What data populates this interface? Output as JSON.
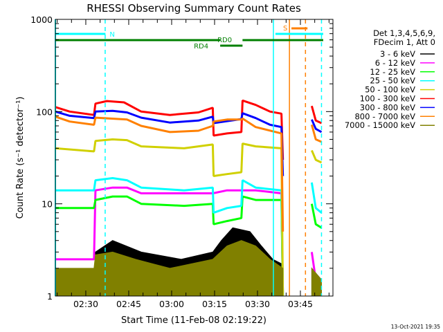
{
  "chart_data": {
    "type": "line",
    "title": "RHESSI Observing Summary Count Rates",
    "xlabel": "Start Time (11-Feb-08 02:19:22)",
    "ylabel": "Count Rate (s⁻¹ detector⁻¹)",
    "yscale": "log",
    "ylim": [
      1,
      1000
    ],
    "xlim_minutes_from_start": [
      0,
      97
    ],
    "start_time_minutes": 139.367,
    "x_tick_labels": [
      "02:30",
      "02:45",
      "03:00",
      "03:15",
      "03:30",
      "03:45"
    ],
    "x_tick_minutes": [
      150,
      165,
      180,
      195,
      210,
      225
    ],
    "y_tick_labels": [
      "1",
      "10",
      "100",
      "1000"
    ],
    "y_tick_values": [
      1,
      10,
      100,
      1000
    ],
    "footer": "13-Oct-2021 19:35",
    "legend": {
      "placement": "right",
      "header": [
        "Det 1,3,4,5,6,9,",
        "FDecim 1, Att 0"
      ]
    },
    "annotations": [
      {
        "label": "N",
        "color": "#00ffff",
        "from": 0,
        "to": 17.5,
        "row": "top"
      },
      {
        "label": "",
        "color": "#00ffff",
        "from": 76.9,
        "to": 93.6,
        "row": "top"
      },
      {
        "label": "S",
        "color": "#ff8000",
        "from": 82.5,
        "to": 88.1,
        "row": "s"
      },
      {
        "label": "RD0",
        "color": "#007f00",
        "from": 0,
        "to": 57.6,
        "row": "rd0"
      },
      {
        "label": "",
        "color": "#007f00",
        "from": 65.4,
        "to": 93.6,
        "row": "rd0"
      },
      {
        "label": "RD4",
        "color": "#007f00",
        "from": 57.6,
        "to": 65.4,
        "row": "rd4"
      }
    ],
    "vlines": [
      {
        "t": 0,
        "color": "#00ffff",
        "dash": false
      },
      {
        "t": 17.4,
        "color": "#00ffff",
        "dash": true
      },
      {
        "t": 76.2,
        "color": "#00ffff",
        "dash": false
      },
      {
        "t": 81.8,
        "color": "#ff8000",
        "dash": false
      },
      {
        "t": 87.4,
        "color": "#ff8000",
        "dash": true
      },
      {
        "t": 93,
        "color": "#00ffff",
        "dash": true
      }
    ],
    "series": [
      {
        "name": "3 - 6 keV",
        "color": "#000000",
        "band": true,
        "segments": [
          [
            [
              0,
              1
            ],
            [
              13.5,
              1
            ],
            [
              14,
              3
            ],
            [
              20,
              4
            ],
            [
              30,
              3
            ],
            [
              44,
              2.5
            ],
            [
              55,
              3
            ],
            [
              58,
              4
            ],
            [
              62,
              5.5
            ],
            [
              68,
              5
            ],
            [
              72,
              3.5
            ],
            [
              76,
              2.5
            ],
            [
              79.5,
              2.2
            ]
          ],
          [
            [
              89.6,
              2
            ],
            [
              93,
              1.5
            ]
          ]
        ],
        "low": [
          [
            [
              0,
              1
            ],
            [
              79.5,
              1
            ]
          ],
          [
            [
              89.6,
              1
            ],
            [
              93,
              1
            ]
          ]
        ]
      },
      {
        "name": "6 - 12 keV",
        "color": "#ff00ff",
        "segments": [
          [
            [
              0,
              2.5
            ],
            [
              13.5,
              2.5
            ],
            [
              14,
              14
            ],
            [
              20,
              15
            ],
            [
              25,
              15
            ],
            [
              30,
              13
            ],
            [
              45,
              13
            ],
            [
              55,
              13
            ],
            [
              60,
              14
            ],
            [
              70,
              14
            ],
            [
              79,
              13
            ],
            [
              79.5,
              1
            ]
          ],
          [
            [
              89.6,
              3
            ],
            [
              91,
              1.5
            ],
            [
              93,
              1.5
            ]
          ]
        ]
      },
      {
        "name": "12 - 25 keV",
        "color": "#00ff00",
        "segments": [
          [
            [
              0,
              9
            ],
            [
              13.5,
              9
            ],
            [
              14,
              11
            ],
            [
              20,
              12
            ],
            [
              25,
              12
            ],
            [
              30,
              10
            ],
            [
              45,
              9.5
            ],
            [
              55,
              10
            ],
            [
              55.3,
              6
            ],
            [
              60,
              6.5
            ],
            [
              65,
              7
            ],
            [
              65.4,
              12
            ],
            [
              70,
              11
            ],
            [
              79,
              11
            ],
            [
              79.5,
              1
            ]
          ],
          [
            [
              89.6,
              10
            ],
            [
              91,
              6
            ],
            [
              93,
              5.5
            ]
          ]
        ]
      },
      {
        "name": "25 - 50 keV",
        "color": "#00ffff",
        "segments": [
          [
            [
              0,
              14
            ],
            [
              13.5,
              14
            ],
            [
              14,
              18
            ],
            [
              20,
              19
            ],
            [
              25,
              18
            ],
            [
              30,
              15
            ],
            [
              45,
              14
            ],
            [
              55,
              15
            ],
            [
              55.3,
              8
            ],
            [
              60,
              9
            ],
            [
              65,
              9.5
            ],
            [
              65.4,
              18
            ],
            [
              70,
              15
            ],
            [
              79,
              14
            ],
            [
              79.5,
              1
            ]
          ],
          [
            [
              89.6,
              17
            ],
            [
              91,
              9
            ],
            [
              93,
              8
            ]
          ]
        ]
      },
      {
        "name": "50 - 100 keV",
        "color": "#d0d000",
        "segments": [
          [
            [
              0,
              40
            ],
            [
              13.5,
              37
            ],
            [
              14,
              48
            ],
            [
              20,
              50
            ],
            [
              25,
              49
            ],
            [
              30,
              42
            ],
            [
              45,
              40
            ],
            [
              55,
              44
            ],
            [
              55.3,
              20
            ],
            [
              60,
              21
            ],
            [
              65,
              22
            ],
            [
              65.4,
              45
            ],
            [
              70,
              42
            ],
            [
              79,
              40
            ],
            [
              79.5,
              1
            ]
          ],
          [
            [
              89.6,
              38
            ],
            [
              91,
              30
            ],
            [
              93,
              28
            ]
          ]
        ]
      },
      {
        "name": "100 - 300 keV",
        "color": "#ff0000",
        "segments": [
          [
            [
              0,
              112
            ],
            [
              5,
              100
            ],
            [
              13.5,
              92
            ],
            [
              14,
              122
            ],
            [
              18,
              130
            ],
            [
              24,
              126
            ],
            [
              30,
              100
            ],
            [
              40,
              92
            ],
            [
              50,
              98
            ],
            [
              55,
              110
            ],
            [
              55.3,
              55
            ],
            [
              60,
              58
            ],
            [
              65,
              60
            ],
            [
              65.4,
              132
            ],
            [
              70,
              118
            ],
            [
              75,
              100
            ],
            [
              79,
              95
            ],
            [
              79.5,
              30
            ]
          ],
          [
            [
              89.6,
              115
            ],
            [
              91,
              80
            ],
            [
              93,
              75
            ]
          ]
        ]
      },
      {
        "name": "300 - 800 keV",
        "color": "#0000ff",
        "segments": [
          [
            [
              0,
              100
            ],
            [
              5,
              90
            ],
            [
              13.5,
              85
            ],
            [
              14,
              100
            ],
            [
              20,
              102
            ],
            [
              25,
              98
            ],
            [
              30,
              86
            ],
            [
              40,
              76
            ],
            [
              50,
              80
            ],
            [
              55,
              88
            ],
            [
              55.3,
              75
            ],
            [
              65,
              83
            ],
            [
              65.4,
              96
            ],
            [
              70,
              85
            ],
            [
              75,
              72
            ],
            [
              79,
              68
            ],
            [
              79.5,
              20
            ]
          ],
          [
            [
              89.6,
              82
            ],
            [
              91,
              65
            ],
            [
              93,
              60
            ]
          ]
        ]
      },
      {
        "name": "800 - 7000 keV",
        "color": "#ff8000",
        "segments": [
          [
            [
              0,
              88
            ],
            [
              5,
              78
            ],
            [
              13.5,
              72
            ],
            [
              14,
              86
            ],
            [
              25,
              82
            ],
            [
              30,
              70
            ],
            [
              40,
              60
            ],
            [
              50,
              62
            ],
            [
              55,
              70
            ],
            [
              55.3,
              78
            ],
            [
              60,
              82
            ],
            [
              65,
              82
            ],
            [
              65.4,
              84
            ],
            [
              70,
              68
            ],
            [
              79,
              58
            ],
            [
              79.5,
              5
            ]
          ],
          [
            [
              89.6,
              72
            ],
            [
              91,
              50
            ],
            [
              93,
              47
            ]
          ]
        ]
      },
      {
        "name": "7000 - 15000 keV",
        "color": "#808000",
        "band": true,
        "segments": [
          [
            [
              0,
              2
            ],
            [
              13.5,
              2
            ],
            [
              14,
              2.8
            ],
            [
              20,
              3
            ],
            [
              28,
              2.5
            ],
            [
              40,
              2
            ],
            [
              55,
              2.5
            ],
            [
              60,
              3.5
            ],
            [
              65,
              4
            ],
            [
              70,
              3.5
            ],
            [
              75,
              2.5
            ],
            [
              79.5,
              2
            ]
          ],
          [
            [
              89.6,
              2
            ],
            [
              93,
              1.5
            ]
          ]
        ],
        "low": [
          [
            [
              0,
              1
            ],
            [
              79.5,
              1
            ]
          ],
          [
            [
              89.6,
              1
            ],
            [
              93,
              1
            ]
          ]
        ]
      }
    ]
  }
}
